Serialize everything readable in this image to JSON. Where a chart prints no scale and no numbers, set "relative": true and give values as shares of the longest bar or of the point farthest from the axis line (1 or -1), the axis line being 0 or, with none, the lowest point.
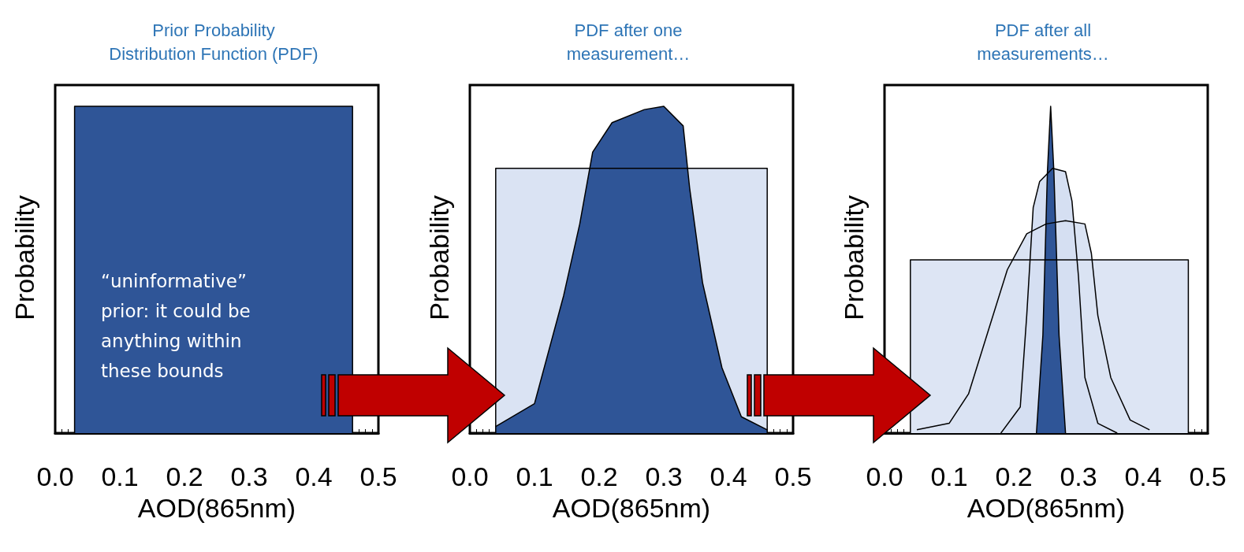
{
  "chart_data": [
    {
      "type": "area",
      "title": "Prior Probability\nDistribution Function (PDF)",
      "xlabel": "AOD(865nm)",
      "ylabel": "Probability",
      "relative": true,
      "xlim": [
        0,
        0.5
      ],
      "xticks": [
        {
          "value": 0,
          "label": "0.0"
        },
        {
          "value": 0.1,
          "label": "0.1"
        },
        {
          "value": 0.2,
          "label": "0.2"
        },
        {
          "value": 0.3,
          "label": "0.3"
        },
        {
          "value": 0.4,
          "label": "0.4"
        },
        {
          "value": 0.5,
          "label": "0.5"
        }
      ],
      "annotations": [
        "“uninformative”\nprior: it could be\nanything within\nthese bounds"
      ],
      "series": [
        {
          "color": "#2f5597",
          "x": [
            0.03,
            0.03,
            0.46,
            0.46
          ],
          "values": [
            0,
            1,
            1,
            0
          ]
        }
      ]
    },
    {
      "type": "area",
      "title": "PDF after one\nmeasurement…",
      "xlabel": "AOD(865nm)",
      "ylabel": "Probability",
      "relative": true,
      "xlim": [
        0,
        0.5
      ],
      "xticks": [
        {
          "value": 0,
          "label": "0.0"
        },
        {
          "value": 0.1,
          "label": "0.1"
        },
        {
          "value": 0.2,
          "label": "0.2"
        },
        {
          "value": 0.3,
          "label": "0.3"
        },
        {
          "value": 0.4,
          "label": "0.4"
        },
        {
          "value": 0.5,
          "label": "0.5"
        }
      ],
      "series": [
        {
          "color": "#dae3f3",
          "x": [
            0.04,
            0.04,
            0.46,
            0.46
          ],
          "values": [
            0,
            0.81,
            0.81,
            0
          ]
        },
        {
          "color": "#2f5597",
          "x": [
            0.04,
            0.1,
            0.145,
            0.17,
            0.19,
            0.22,
            0.27,
            0.3,
            0.33,
            0.34,
            0.36,
            0.39,
            0.42,
            0.46
          ],
          "values": [
            0.02,
            0.09,
            0.42,
            0.64,
            0.86,
            0.95,
            0.99,
            1,
            0.94,
            0.75,
            0.46,
            0.2,
            0.05,
            0.01
          ]
        }
      ]
    },
    {
      "type": "area",
      "title": "PDF after all\nmeasurements…",
      "xlabel": "AOD(865nm)",
      "ylabel": "Probability",
      "relative": true,
      "xlim": [
        0,
        0.5
      ],
      "xticks": [
        {
          "value": 0,
          "label": "0.0"
        },
        {
          "value": 0.1,
          "label": "0.1"
        },
        {
          "value": 0.2,
          "label": "0.2"
        },
        {
          "value": 0.3,
          "label": "0.3"
        },
        {
          "value": 0.4,
          "label": "0.4"
        },
        {
          "value": 0.5,
          "label": "0.5"
        }
      ],
      "series": [
        {
          "color": "#dde5f4",
          "x": [
            0.04,
            0.04,
            0.47,
            0.47
          ],
          "values": [
            0,
            0.53,
            0.53,
            0
          ]
        },
        {
          "color": "#dae3f3",
          "x": [
            0.05,
            0.1,
            0.13,
            0.16,
            0.19,
            0.22,
            0.25,
            0.28,
            0.31,
            0.32,
            0.33,
            0.35,
            0.38,
            0.41
          ],
          "values": [
            0.01,
            0.03,
            0.12,
            0.31,
            0.5,
            0.61,
            0.64,
            0.65,
            0.64,
            0.55,
            0.36,
            0.17,
            0.04,
            0.01
          ]
        },
        {
          "color": "#d5dff2",
          "x": [
            0.18,
            0.21,
            0.22,
            0.23,
            0.24,
            0.26,
            0.28,
            0.29,
            0.3,
            0.31,
            0.33,
            0.36
          ],
          "values": [
            0,
            0.08,
            0.36,
            0.69,
            0.77,
            0.81,
            0.8,
            0.71,
            0.48,
            0.17,
            0.03,
            0
          ]
        },
        {
          "color": "#2f5597",
          "x": [
            0.235,
            0.245,
            0.252,
            0.257,
            0.262,
            0.27,
            0.28
          ],
          "values": [
            0,
            0.3,
            0.8,
            1,
            0.8,
            0.3,
            0
          ]
        }
      ]
    }
  ]
}
